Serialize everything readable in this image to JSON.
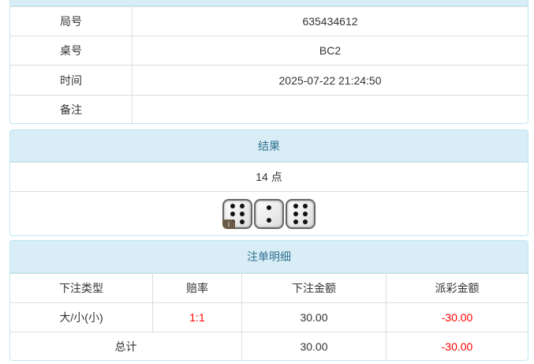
{
  "info": {
    "rows": [
      {
        "label": "局号",
        "value": "635434612"
      },
      {
        "label": "桌号",
        "value": "BC2"
      },
      {
        "label": "时间",
        "value": "2025-07-22 21:24:50"
      },
      {
        "label": "备注",
        "value": ""
      }
    ]
  },
  "result": {
    "title": "结果",
    "points": "14 点",
    "dice": [
      6,
      2,
      6
    ],
    "info_badge": "i"
  },
  "bets": {
    "title": "注单明细",
    "headers": [
      "下注类型",
      "赔率",
      "下注金额",
      "派彩金额"
    ],
    "rows": [
      {
        "type": "大/小(小)",
        "odds": "1:1",
        "amount": "30.00",
        "payout": "-30.00"
      }
    ],
    "total": {
      "label": "总计",
      "amount": "30.00",
      "payout": "-30.00"
    }
  },
  "colors": {
    "header_bg": "#d9edf7",
    "negative": "#ff0000"
  }
}
